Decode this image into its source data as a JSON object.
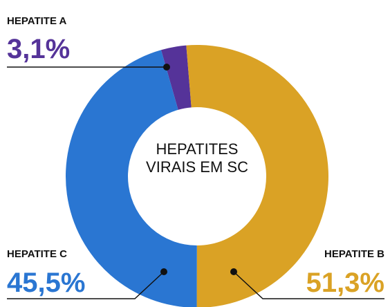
{
  "chart_data": {
    "type": "pie",
    "donut": true,
    "title": "HEPATITES VIRAIS EM SC",
    "categories": [
      "HEPATITE A",
      "HEPATITE B",
      "HEPATITE C"
    ],
    "values": [
      3.1,
      51.3,
      45.5
    ],
    "value_labels": [
      "3,1%",
      "51,3%",
      "45,5%"
    ],
    "colors": [
      "#553399",
      "#DAA225",
      "#2A76D2"
    ]
  }
}
